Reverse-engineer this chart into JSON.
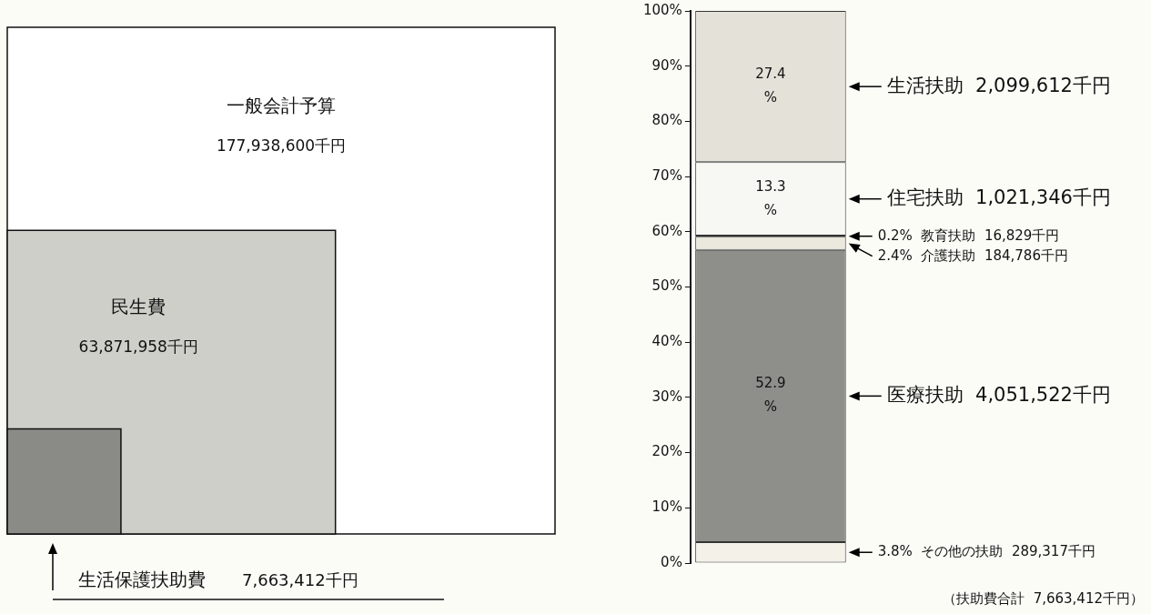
{
  "chart_data": [
    {
      "type": "other",
      "categories": [
        "一般会計予算",
        "民生費",
        "生活保護扶助費"
      ],
      "values": [
        177938600,
        63871958,
        7663412
      ],
      "value_labels": [
        "177,938,600千円",
        "63,871,958千円",
        "7,663,412千円"
      ],
      "colors": [
        "#ffffff",
        "#cfcfca",
        "#8a8a86"
      ]
    },
    {
      "type": "bar",
      "stacked": true,
      "categories": [
        null
      ],
      "ylim": [
        0,
        100
      ],
      "yticks": [
        {
          "value": 0,
          "label": "0%"
        },
        {
          "value": 10,
          "label": "10%"
        },
        {
          "value": 20,
          "label": "20%"
        },
        {
          "value": 30,
          "label": "30%"
        },
        {
          "value": 40,
          "label": "40%"
        },
        {
          "value": 50,
          "label": "50%"
        },
        {
          "value": 60,
          "label": "60%"
        },
        {
          "value": 70,
          "label": "70%"
        },
        {
          "value": 80,
          "label": "80%"
        },
        {
          "value": 90,
          "label": "90%"
        },
        {
          "value": 100,
          "label": "100%"
        }
      ],
      "grid": false,
      "series": [
        {
          "name": "3.8%  その他の扶助  289,317千円",
          "color": "#f3f1e8",
          "values": [
            3.8
          ]
        },
        {
          "name": "医療扶助  4,051,522千円",
          "color": "#8e8e8b",
          "values": [
            52.9
          ],
          "value_labels": [
            "52.9\n%"
          ]
        },
        {
          "name": "2.4%  介護扶助  184,786千円",
          "color": "#ebe8de",
          "values": [
            2.4
          ]
        },
        {
          "name": "0.2%  教育扶助  16,829千円",
          "color": "#333333",
          "values": [
            0.2
          ]
        },
        {
          "name": "住宅扶助  1,021,346千円",
          "color": "#f7f7f4",
          "values": [
            13.3
          ],
          "value_labels": [
            "13.3\n%"
          ]
        },
        {
          "name": "生活扶助  2,099,612千円",
          "color": "#e4e2d8",
          "values": [
            27.4
          ],
          "value_labels": [
            "27.4\n%"
          ]
        }
      ],
      "annotations": [
        "（扶助費合計  7,663,412千円）"
      ]
    }
  ]
}
